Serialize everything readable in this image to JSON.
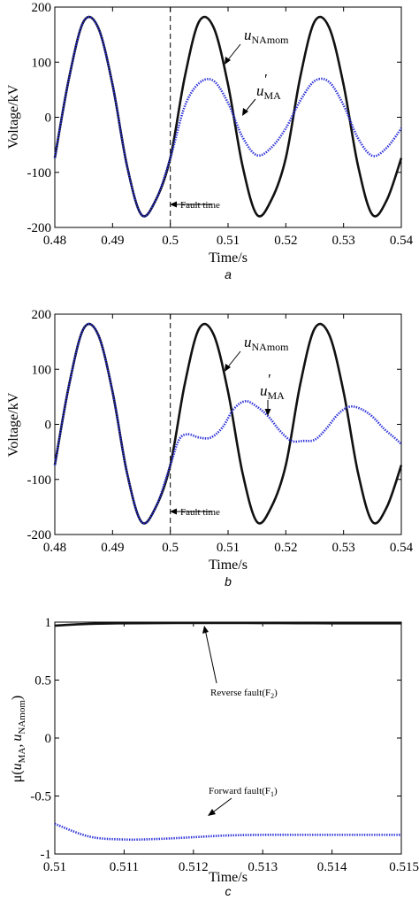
{
  "colors": {
    "series_black": "#111111",
    "series_blue": "#2a2fd6",
    "axis": "#000000"
  },
  "chart_data": [
    {
      "type": "line",
      "panel": "a",
      "xlabel": "Time/s",
      "ylabel": "Voltage/kV",
      "xlim": [
        0.48,
        0.54
      ],
      "ylim": [
        -200,
        200
      ],
      "xticks": [
        "0.48",
        "0.49",
        "0.5",
        "0.51",
        "0.52",
        "0.53",
        "0.54"
      ],
      "yticks": [
        "-200",
        "-100",
        "0",
        "100",
        "200"
      ],
      "series": [
        {
          "name": "u_NAmom",
          "name_main": "u",
          "name_sub": "NAmom",
          "color": "#111111",
          "style": "solid",
          "x": [
            0.48,
            0.4825,
            0.485,
            0.4875,
            0.49,
            0.4925,
            0.495,
            0.4975,
            0.5,
            0.5025,
            0.505,
            0.5075,
            0.51,
            0.5125,
            0.515,
            0.5175,
            0.52,
            0.5225,
            0.525,
            0.5275,
            0.53,
            0.5325,
            0.535,
            0.5375,
            0.54
          ],
          "y": [
            -74,
            73,
            174,
            163,
            59,
            -88,
            -177,
            -150,
            -74,
            73,
            174,
            163,
            59,
            -88,
            -177,
            -150,
            -74,
            73,
            174,
            163,
            59,
            -88,
            -177,
            -150,
            -74
          ]
        },
        {
          "name": "u'_MA",
          "name_main": "u",
          "name_sub": "MA",
          "color": "#2a2fd6",
          "style": "dotted",
          "x": [
            0.48,
            0.4825,
            0.485,
            0.4875,
            0.49,
            0.4925,
            0.495,
            0.4975,
            0.5,
            0.5025,
            0.505,
            0.5075,
            0.51,
            0.5125,
            0.515,
            0.5175,
            0.52,
            0.5225,
            0.525,
            0.5275,
            0.53,
            0.5325,
            0.535,
            0.5375,
            0.54
          ],
          "y": [
            -74,
            73,
            174,
            163,
            59,
            -88,
            -177,
            -150,
            -74,
            20,
            62,
            66,
            26,
            -36,
            -69,
            -55,
            -20,
            30,
            66,
            64,
            22,
            -38,
            -70,
            -55,
            -20
          ]
        }
      ],
      "annotations": [
        {
          "text": "Fault time",
          "x": 0.5,
          "y": -150
        },
        {
          "text": "u_NAmom",
          "x": 0.513,
          "y": 128
        },
        {
          "text": "u'_MA",
          "x": 0.5175,
          "y": 15
        }
      ],
      "fault_line_x": 0.5
    },
    {
      "type": "line",
      "panel": "b",
      "xlabel": "Time/s",
      "ylabel": "Voltage/kV",
      "xlim": [
        0.48,
        0.54
      ],
      "ylim": [
        -200,
        200
      ],
      "xticks": [
        "0.48",
        "0.49",
        "0.5",
        "0.51",
        "0.52",
        "0.53",
        "0.54"
      ],
      "yticks": [
        "-200",
        "-100",
        "0",
        "100",
        "200"
      ],
      "series": [
        {
          "name": "u_NAmom",
          "name_main": "u",
          "name_sub": "NAmom",
          "color": "#111111",
          "style": "solid",
          "x": [
            0.48,
            0.4825,
            0.485,
            0.4875,
            0.49,
            0.4925,
            0.495,
            0.4975,
            0.5,
            0.5025,
            0.505,
            0.5075,
            0.51,
            0.5125,
            0.515,
            0.5175,
            0.52,
            0.5225,
            0.525,
            0.5275,
            0.53,
            0.5325,
            0.535,
            0.5375,
            0.54
          ],
          "y": [
            -74,
            73,
            174,
            163,
            59,
            -88,
            -177,
            -150,
            -74,
            73,
            174,
            163,
            59,
            -88,
            -177,
            -150,
            -74,
            73,
            174,
            163,
            59,
            -88,
            -177,
            -150,
            -74
          ]
        },
        {
          "name": "u'_MA",
          "name_main": "u",
          "name_sub": "MA",
          "color": "#2a2fd6",
          "style": "dotted",
          "x": [
            0.48,
            0.4825,
            0.485,
            0.4875,
            0.49,
            0.4925,
            0.495,
            0.4975,
            0.5,
            0.5015,
            0.503,
            0.505,
            0.507,
            0.509,
            0.511,
            0.513,
            0.515,
            0.517,
            0.519,
            0.521,
            0.523,
            0.525,
            0.527,
            0.529,
            0.531,
            0.533,
            0.535,
            0.537,
            0.539,
            0.54
          ],
          "y": [
            -74,
            73,
            174,
            163,
            59,
            -88,
            -177,
            -150,
            -74,
            -28,
            -18,
            -24,
            -24,
            -6,
            28,
            42,
            32,
            14,
            -12,
            -30,
            -30,
            -28,
            -8,
            18,
            32,
            28,
            14,
            -8,
            -26,
            -36
          ]
        }
      ],
      "annotations": [
        {
          "text": "Fault time",
          "x": 0.5,
          "y": -150
        },
        {
          "text": "u_NAmom",
          "x": 0.513,
          "y": 128
        },
        {
          "text": "u'_MA",
          "x": 0.5175,
          "y": 60
        }
      ],
      "fault_line_x": 0.5
    },
    {
      "type": "line",
      "panel": "c",
      "xlabel": "Time/s",
      "ylabel": "μ(u'MA, uNAmom)",
      "ylabel_parts": {
        "mu": "μ(",
        "u1": "u",
        "sub1": "MA",
        "sep": ",",
        "u2": "u",
        "sub2": "NAmom",
        "close": ")"
      },
      "xlim": [
        0.51,
        0.515
      ],
      "ylim": [
        -1,
        1
      ],
      "xticks": [
        "0.51",
        "0.511",
        "0.512",
        "0.513",
        "0.514",
        "0.515"
      ],
      "yticks": [
        "-1",
        "-0.5",
        "0",
        "0.5",
        "1"
      ],
      "series": [
        {
          "name": "Reverse fault(F2)",
          "color": "#111111",
          "style": "solid",
          "x": [
            0.51,
            0.5105,
            0.511,
            0.5115,
            0.512,
            0.5125,
            0.513,
            0.5135,
            0.514,
            0.5145,
            0.515
          ],
          "y": [
            0.97,
            0.985,
            0.99,
            0.992,
            0.993,
            0.993,
            0.992,
            0.991,
            0.99,
            0.99,
            0.99
          ]
        },
        {
          "name": "Forward fault(F1)",
          "color": "#2a2fd6",
          "style": "dotted",
          "x": [
            0.51,
            0.5105,
            0.511,
            0.5115,
            0.512,
            0.5125,
            0.513,
            0.5135,
            0.514,
            0.5145,
            0.515
          ],
          "y": [
            -0.74,
            -0.85,
            -0.875,
            -0.87,
            -0.855,
            -0.84,
            -0.835,
            -0.835,
            -0.835,
            -0.835,
            -0.835
          ]
        }
      ],
      "annotations": [
        {
          "text": "Reverse fault(F2)",
          "x": 0.5122,
          "y": 0.82
        },
        {
          "text": "Forward fault(F1)",
          "x": 0.5115,
          "y": -0.63
        }
      ]
    }
  ],
  "panels": {
    "a": {
      "label": "a",
      "fault_text": "Fault time"
    },
    "b": {
      "label": "b",
      "fault_text": "Fault time"
    },
    "c": {
      "label": "c",
      "reverse_main": "Reverse fault(F",
      "reverse_sub": "2",
      "reverse_close": ")",
      "forward_main": "Forward fault(F",
      "forward_sub": "1",
      "forward_close": ")"
    }
  }
}
